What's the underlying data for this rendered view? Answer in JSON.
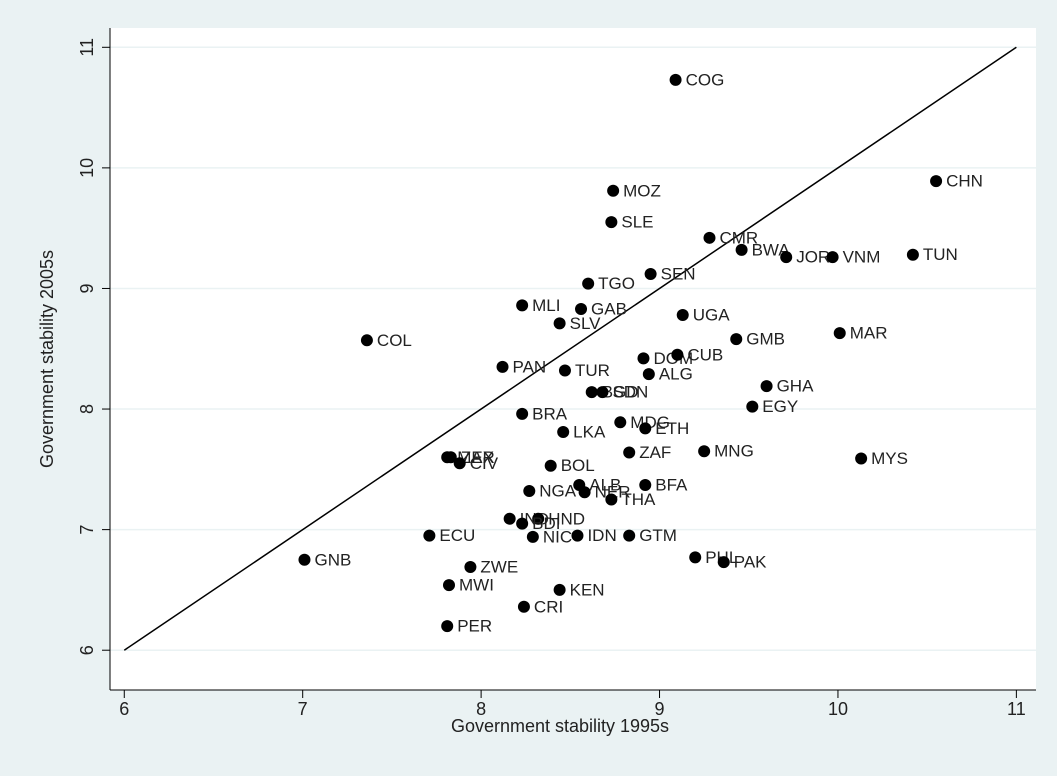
{
  "chart_data": {
    "type": "scatter",
    "xlabel": "Government stability 1995s",
    "ylabel": "Government stability 2005s",
    "xlim": [
      5.92,
      11.11
    ],
    "ylim": [
      5.67,
      11.16
    ],
    "xticks": [
      6,
      7,
      8,
      9,
      10,
      11
    ],
    "yticks": [
      6,
      7,
      8,
      9,
      10,
      11
    ],
    "grid": true,
    "color": "#000000",
    "line_color": "#000000",
    "labels": [
      "COG",
      "CHN",
      "MOZ",
      "SLE",
      "CMR",
      "BWA",
      "JOR",
      "VNM",
      "TUN",
      "SEN",
      "TGO",
      "MLI",
      "GAB",
      "UGA",
      "SLV",
      "COL",
      "GMB",
      "MAR",
      "DOM",
      "CUB",
      "PAN",
      "TUR",
      "ALG",
      "GHA",
      "BGD",
      "SDN",
      "EGY",
      "BRA",
      "MDG",
      "ETH",
      "LKA",
      "ZAF",
      "MNG",
      "MYS",
      "MEX",
      "ZAR",
      "CIV",
      "BOL",
      "ALB",
      "NER",
      "BFA",
      "NGA",
      "THA",
      "IND",
      "HND",
      "BDI",
      "ECU",
      "NIC",
      "IDN",
      "GTM",
      "GNB",
      "PHL",
      "PAK",
      "ZWE",
      "MWI",
      "KEN",
      "CRI",
      "PER"
    ],
    "x": [
      9.09,
      10.55,
      8.74,
      8.73,
      9.28,
      9.46,
      9.71,
      9.97,
      10.42,
      8.95,
      8.6,
      8.23,
      8.56,
      9.13,
      8.44,
      7.36,
      9.43,
      10.01,
      8.91,
      9.1,
      8.12,
      8.47,
      8.94,
      9.6,
      8.62,
      8.68,
      9.52,
      8.23,
      8.78,
      8.92,
      8.46,
      8.83,
      9.25,
      10.13,
      7.81,
      7.83,
      7.88,
      8.39,
      8.55,
      8.58,
      8.92,
      8.27,
      8.73,
      8.16,
      8.32,
      8.23,
      7.71,
      8.29,
      8.54,
      8.83,
      7.01,
      9.2,
      9.36,
      7.94,
      7.82,
      8.44,
      8.24,
      7.81
    ],
    "values": [
      10.73,
      9.89,
      9.81,
      9.55,
      9.42,
      9.32,
      9.26,
      9.26,
      9.28,
      9.12,
      9.04,
      8.86,
      8.83,
      8.78,
      8.71,
      8.57,
      8.58,
      8.63,
      8.42,
      8.45,
      8.35,
      8.32,
      8.29,
      8.19,
      8.14,
      8.14,
      8.02,
      7.96,
      7.89,
      7.84,
      7.81,
      7.64,
      7.65,
      7.59,
      7.6,
      7.6,
      7.55,
      7.53,
      7.37,
      7.31,
      7.37,
      7.32,
      7.25,
      7.09,
      7.09,
      7.05,
      6.95,
      6.94,
      6.95,
      6.95,
      6.75,
      6.77,
      6.73,
      6.69,
      6.54,
      6.5,
      6.36,
      6.2
    ]
  }
}
